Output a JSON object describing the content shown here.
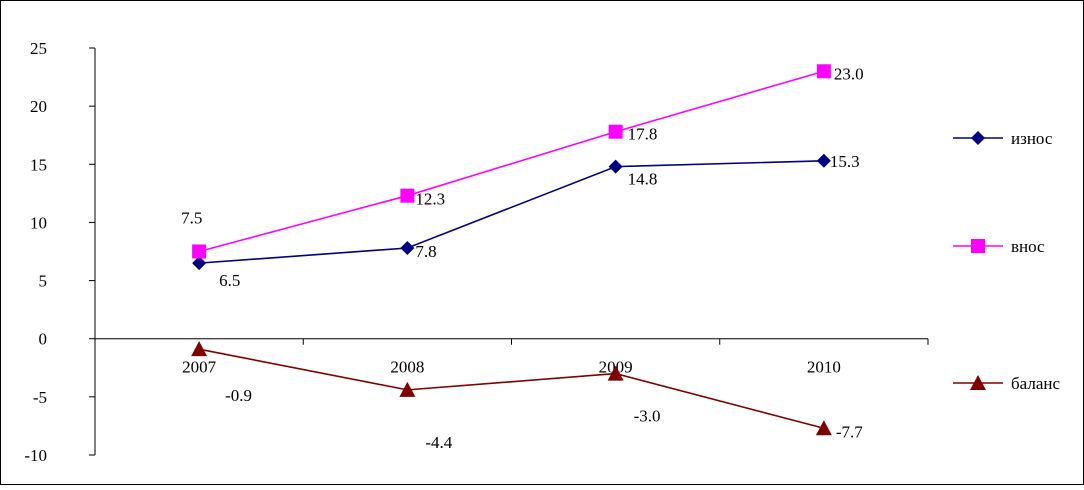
{
  "chart_data": {
    "type": "line",
    "title": "",
    "xlabel": "",
    "ylabel": "",
    "categories": [
      "2007",
      "2008",
      "2009",
      "2010"
    ],
    "ylim": [
      -10,
      25
    ],
    "yticks": [
      25,
      20,
      15,
      10,
      5,
      0,
      -5,
      -10
    ],
    "grid": false,
    "legend_position": "right",
    "series": [
      {
        "name": "износ",
        "values": [
          6.5,
          7.8,
          14.8,
          15.3
        ],
        "labels": [
          "6.5",
          "7.8",
          "14.8",
          "15.3"
        ],
        "color": "#000080",
        "marker": "diamond"
      },
      {
        "name": "внос",
        "values": [
          7.5,
          12.3,
          17.8,
          23.0
        ],
        "labels": [
          "7.5",
          "12.3",
          "17.8",
          "23.0"
        ],
        "color": "#FF00FF",
        "marker": "square"
      },
      {
        "name": "баланс",
        "values": [
          -0.9,
          -4.4,
          -3.0,
          -7.7
        ],
        "labels": [
          "-0.9",
          "-4.4",
          "-3.0",
          "-7.7"
        ],
        "color": "#800000",
        "marker": "triangle"
      }
    ]
  }
}
